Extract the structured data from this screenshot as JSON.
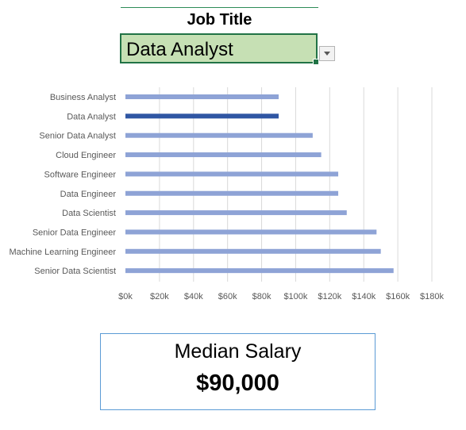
{
  "filter": {
    "label": "Job Title",
    "selected_value": "Data Analyst",
    "dropdown_icon": "chevron-down-icon"
  },
  "colors": {
    "bar": "#8ea3d6",
    "bar_selected": "#2f56a3",
    "gridline": "#d9d9d9",
    "select_fill": "#c6e0b4",
    "select_border": "#217346",
    "card_border": "#5b9bd5"
  },
  "chart_data": {
    "type": "bar",
    "orientation": "horizontal",
    "categories": [
      "Business Analyst",
      "Data Analyst",
      "Senior Data Analyst",
      "Cloud Engineer",
      "Software Engineer",
      "Data Engineer",
      "Data Scientist",
      "Senior Data Engineer",
      "Machine Learning Engineer",
      "Senior Data Scientist"
    ],
    "values": [
      90000,
      90000,
      110000,
      115000,
      125000,
      125000,
      130000,
      147500,
      150000,
      157500
    ],
    "highlighted_category": "Data Analyst",
    "title": "",
    "xlabel": "",
    "ylabel": "",
    "xlim": [
      0,
      180000
    ],
    "xticks": [
      0,
      20000,
      40000,
      60000,
      80000,
      100000,
      120000,
      140000,
      160000,
      180000
    ],
    "xtick_labels": [
      "$0k",
      "$20k",
      "$40k",
      "$60k",
      "$80k",
      "$100k",
      "$120k",
      "$140k",
      "$160k",
      "$180k"
    ],
    "grid": "vertical",
    "legend": "none"
  },
  "summary": {
    "title": "Median Salary",
    "value": "$90,000"
  }
}
